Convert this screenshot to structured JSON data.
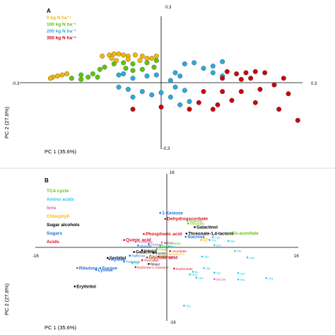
{
  "chart_data": [
    {
      "type": "scatter",
      "panel": "A",
      "xlabel": "PC 1 (35.6%)",
      "ylabel": "PC 2 (27.6%)",
      "xlim": [
        -0.3,
        0.3
      ],
      "ylim": [
        -0.3,
        0.3
      ],
      "tick_labels": {
        "x_min": "-0.3",
        "x_max": "0.3",
        "y_max": "0.3",
        "y_min": "-0.3"
      },
      "legend": "top-left",
      "series": [
        {
          "name": "0 kg N ha⁻¹",
          "color": "#f2b705",
          "points": [
            [
              -0.23,
              0.025
            ],
            [
              -0.22,
              0.03
            ],
            [
              -0.21,
              0.035
            ],
            [
              -0.235,
              0.02
            ],
            [
              -0.2,
              0.04
            ],
            [
              -0.125,
              0.12
            ],
            [
              -0.11,
              0.125
            ],
            [
              -0.1,
              0.13
            ],
            [
              -0.09,
              0.13
            ],
            [
              -0.08,
              0.125
            ],
            [
              -0.07,
              0.12
            ],
            [
              -0.055,
              0.125
            ],
            [
              -0.04,
              0.12
            ],
            [
              -0.03,
              0.11
            ],
            [
              -0.02,
              0.11
            ],
            [
              -0.01,
              0.12
            ],
            [
              -0.105,
              0.11
            ],
            [
              -0.07,
              0.105
            ],
            [
              -0.045,
              0.1
            ],
            [
              -0.095,
              0.1
            ]
          ]
        },
        {
          "name": "100 kg N ha⁻¹",
          "color": "#5cc40e",
          "points": [
            [
              -0.19,
              0.02
            ],
            [
              -0.17,
              0.015
            ],
            [
              -0.155,
              0.025
            ],
            [
              -0.145,
              0.04
            ],
            [
              -0.13,
              0.06
            ],
            [
              -0.12,
              0.07
            ],
            [
              -0.1,
              0.085
            ],
            [
              -0.08,
              0.09
            ],
            [
              -0.06,
              0.085
            ],
            [
              -0.03,
              0.09
            ],
            [
              -0.01,
              0.1
            ],
            [
              -0.06,
              0.055
            ],
            [
              -0.04,
              0.06
            ],
            [
              -0.015,
              0.07
            ],
            [
              -0.17,
              0.035
            ],
            [
              -0.075,
              0.065
            ],
            [
              -0.135,
              0.025
            ]
          ]
        },
        {
          "name": "200 kg N ha⁻¹",
          "color": "#2aaadf",
          "points": [
            [
              -0.09,
              0.035
            ],
            [
              -0.08,
              0.04
            ],
            [
              -0.06,
              0.02
            ],
            [
              -0.03,
              0.03
            ],
            [
              -0.01,
              0.035
            ],
            [
              0.03,
              0.045
            ],
            [
              0.05,
              0.085
            ],
            [
              0.07,
              0.09
            ],
            [
              0.09,
              0.065
            ],
            [
              0.11,
              0.045
            ],
            [
              0.13,
              0.03
            ],
            [
              0.04,
              0.03
            ],
            [
              0.11,
              0.075
            ],
            [
              0.13,
              0.095
            ],
            [
              -0.09,
              -0.02
            ],
            [
              -0.07,
              -0.03
            ],
            [
              -0.04,
              -0.04
            ],
            [
              -0.06,
              -0.065
            ],
            [
              -0.02,
              -0.055
            ],
            [
              0.0,
              -0.045
            ],
            [
              0.03,
              -0.02
            ],
            [
              0.05,
              -0.035
            ],
            [
              0.02,
              -0.065
            ],
            [
              0.04,
              -0.1
            ],
            [
              0.06,
              -0.085
            ],
            [
              0.02,
              0.01
            ]
          ]
        },
        {
          "name": "350 kg N ha⁻¹",
          "color": "#c8050e",
          "points": [
            [
              0.14,
              0.05
            ],
            [
              0.16,
              0.04
            ],
            [
              0.18,
              0.045
            ],
            [
              0.13,
              0.02
            ],
            [
              0.17,
              0.015
            ],
            [
              0.2,
              0.05
            ],
            [
              0.22,
              0.045
            ],
            [
              0.19,
              0.02
            ],
            [
              0.09,
              -0.04
            ],
            [
              0.13,
              -0.04
            ],
            [
              0.17,
              -0.04
            ],
            [
              0.21,
              -0.03
            ],
            [
              0.24,
              -0.01
            ],
            [
              0.26,
              0.02
            ],
            [
              0.15,
              -0.08
            ],
            [
              0.08,
              -0.09
            ],
            [
              0.12,
              -0.1
            ],
            [
              0.2,
              -0.09
            ],
            [
              0.27,
              -0.05
            ],
            [
              -0.06,
              -0.12
            ],
            [
              0.0,
              -0.11
            ],
            [
              0.06,
              -0.12
            ],
            [
              0.11,
              -0.12
            ],
            [
              0.25,
              -0.12
            ],
            [
              0.29,
              -0.17
            ]
          ]
        }
      ]
    },
    {
      "type": "scatter",
      "panel": "B",
      "xlabel": "PC 1 (35.6%)",
      "ylabel": "PC 2 (27.6%)",
      "xlim": [
        -16,
        16
      ],
      "ylim": [
        -16,
        16
      ],
      "tick_labels": {
        "x_min": "-16",
        "x_max": "16",
        "y_max": "16",
        "y_min": "-16"
      },
      "legend": "left",
      "legend_entries": [
        {
          "label": "TCA cycle",
          "color": "#5cc40e"
        },
        {
          "label": "Amino acids",
          "color": "#2ec4e6"
        },
        {
          "label": "Ions",
          "color": "#e056c2"
        },
        {
          "label": "Chlorphyll",
          "color": "#f2b705"
        },
        {
          "label": "Sugar alcohols",
          "color": "#000000"
        },
        {
          "label": "Sugars",
          "color": "#1f6fd1"
        },
        {
          "label": "Acids",
          "color": "#d8101e"
        }
      ],
      "loadings": [
        {
          "label": "1-Kestose",
          "x": -0.8,
          "y": 7.5,
          "group": "Sugars",
          "size": "medium"
        },
        {
          "label": "Dehydroascorbate",
          "x": -0.2,
          "y": 6.2,
          "group": "Acids",
          "size": "large"
        },
        {
          "label": "Malonate",
          "x": 2.5,
          "y": 5.8,
          "group": "TCA cycle",
          "size": "small"
        },
        {
          "label": "Shikimate",
          "x": 2.6,
          "y": 5.2,
          "group": "TCA cycle",
          "size": "small"
        },
        {
          "label": "Galactinol",
          "x": 3.4,
          "y": 4.4,
          "group": "Sugar alcohols",
          "size": "medium"
        },
        {
          "label": "Threonate-1,4-lactone",
          "x": 2.4,
          "y": 3.0,
          "group": "Sugar alcohols",
          "size": "medium"
        },
        {
          "label": "Cis-aconitate",
          "x": 7.6,
          "y": 3.1,
          "group": "TCA cycle",
          "size": "medium"
        },
        {
          "label": "Phosphoric acid",
          "x": -2.8,
          "y": 2.9,
          "group": "Acids",
          "size": "large"
        },
        {
          "label": "Sucrose",
          "x": 2.3,
          "y": 2.3,
          "group": "Sugars",
          "size": "medium"
        },
        {
          "label": "Asp",
          "x": 5.6,
          "y": 2.2,
          "group": "Amino acids",
          "size": "small"
        },
        {
          "label": "Glu",
          "x": 5.2,
          "y": 1.6,
          "group": "Amino acids",
          "size": "small"
        },
        {
          "label": "Ser",
          "x": 7.5,
          "y": 1.4,
          "group": "Amino acids",
          "size": "small"
        },
        {
          "label": "Quinic acid",
          "x": -5.2,
          "y": 1.6,
          "group": "Acids",
          "size": "large"
        },
        {
          "label": "Cl⁻",
          "x": 4.2,
          "y": 1.6,
          "group": "Chlorphyll",
          "size": "medium"
        },
        {
          "label": "Gly",
          "x": 5.8,
          "y": 0.5,
          "group": "Amino acids",
          "size": "small"
        },
        {
          "label": "Thr",
          "x": 8.3,
          "y": -0.8,
          "group": "Amino acids",
          "size": "small"
        },
        {
          "label": "Galactinol",
          "x": -4.0,
          "y": -1.0,
          "group": "Sugar alcohols",
          "size": "medium"
        },
        {
          "label": "Glycolic acid",
          "x": -2.4,
          "y": -2.2,
          "group": "Acids",
          "size": "large"
        },
        {
          "label": "Sorbitol",
          "x": -7.2,
          "y": -2.3,
          "group": "Sugar alcohols",
          "size": "medium"
        },
        {
          "label": "Xylose",
          "x": -7.0,
          "y": -2.6,
          "group": "Sugars",
          "size": "medium"
        },
        {
          "label": "Gln",
          "x": 4.3,
          "y": -2.0,
          "group": "Amino acids",
          "size": "small"
        },
        {
          "label": "Asn",
          "x": 9.8,
          "y": -2.2,
          "group": "Amino acids",
          "size": "small"
        },
        {
          "label": "Ribulose",
          "x": -10.9,
          "y": -4.5,
          "group": "Sugars",
          "size": "medium"
        },
        {
          "label": "Fucose",
          "x": -8.1,
          "y": -4.5,
          "group": "Sugars",
          "size": "medium"
        },
        {
          "label": "Lyxose",
          "x": -8.6,
          "y": -4.9,
          "group": "Sugars",
          "size": "medium"
        },
        {
          "label": "Erythronate",
          "x": 0.9,
          "y": -4.6,
          "group": "Acids",
          "size": "small"
        },
        {
          "label": "Val",
          "x": 4.5,
          "y": -4.5,
          "group": "Amino acids",
          "size": "small"
        },
        {
          "label": "Tyr",
          "x": 5.8,
          "y": -5.5,
          "group": "Amino acids",
          "size": "small"
        },
        {
          "label": "Ile",
          "x": 3.2,
          "y": -5.3,
          "group": "Amino acids",
          "size": "small"
        },
        {
          "label": "Phe",
          "x": 2.8,
          "y": -5.9,
          "group": "Amino acids",
          "size": "small"
        },
        {
          "label": "Lys",
          "x": 8.7,
          "y": -5.6,
          "group": "Amino acids",
          "size": "small"
        },
        {
          "label": "Leu",
          "x": 3.6,
          "y": -6.6,
          "group": "Amino acids",
          "size": "small"
        },
        {
          "label": "Nitrate",
          "x": 5.8,
          "y": -6.9,
          "group": "Ions",
          "size": "small"
        },
        {
          "label": "Arg",
          "x": 12.1,
          "y": -6.7,
          "group": "Amino acids",
          "size": "small"
        },
        {
          "label": "His",
          "x": 8.7,
          "y": -7.0,
          "group": "Amino acids",
          "size": "small"
        },
        {
          "label": "Erythritol",
          "x": -11.2,
          "y": -8.5,
          "group": "Sugar alcohols",
          "size": "medium"
        },
        {
          "label": "Trp",
          "x": 2.1,
          "y": -12.7,
          "group": "Amino acids",
          "size": "small"
        },
        {
          "label": "Glucose",
          "x": -3.5,
          "y": 0.4,
          "group": "Sugars",
          "size": "small"
        },
        {
          "label": "Fructose",
          "x": -2.2,
          "y": 0.7,
          "group": "Sugars",
          "size": "small"
        },
        {
          "label": "Malate",
          "x": -0.8,
          "y": 0.3,
          "group": "TCA cycle",
          "size": "small"
        },
        {
          "label": "Citrate",
          "x": -1.2,
          "y": -0.4,
          "group": "TCA cycle",
          "size": "small"
        },
        {
          "label": "Mannitol",
          "x": -3.0,
          "y": -0.6,
          "group": "Sugar alcohols",
          "size": "small"
        },
        {
          "label": "Inositol",
          "x": -1.6,
          "y": -1.2,
          "group": "Sugar alcohols",
          "size": "small"
        },
        {
          "label": "Chlorophyll a",
          "x": -0.4,
          "y": -1.4,
          "group": "Chlorphyll",
          "size": "small"
        },
        {
          "label": "Sulfate",
          "x": -0.6,
          "y": 1.1,
          "group": "Ions",
          "size": "small"
        },
        {
          "label": "Phosphate",
          "x": -3.8,
          "y": 1.2,
          "group": "Ions",
          "size": "small"
        },
        {
          "label": "Succinate",
          "x": -2.0,
          "y": -1.8,
          "group": "TCA cycle",
          "size": "small"
        },
        {
          "label": "Fumarate",
          "x": -0.2,
          "y": 0.9,
          "group": "TCA cycle",
          "size": "small"
        },
        {
          "label": "Raffinose",
          "x": -4.5,
          "y": -1.8,
          "group": "Sugars",
          "size": "small"
        },
        {
          "label": "Glycerate",
          "x": -1.0,
          "y": -2.0,
          "group": "Acids",
          "size": "small"
        },
        {
          "label": "Threonate",
          "x": -3.0,
          "y": -2.8,
          "group": "Acids",
          "size": "small"
        },
        {
          "label": "Ascorbate",
          "x": 0.4,
          "y": -0.8,
          "group": "Acids",
          "size": "small"
        },
        {
          "label": "Pro",
          "x": 0.2,
          "y": 0.2,
          "group": "Amino acids",
          "size": "small"
        },
        {
          "label": "Ala",
          "x": -4.2,
          "y": -3.4,
          "group": "Amino acids",
          "size": "small"
        },
        {
          "label": "Ribitol",
          "x": -2.2,
          "y": -3.6,
          "group": "Sugar alcohols",
          "size": "small"
        },
        {
          "label": "Erythrose-1,4-lactone",
          "x": -3.8,
          "y": -4.3,
          "group": "Acids",
          "size": "small"
        },
        {
          "label": "Trehalose",
          "x": -5.2,
          "y": -3.1,
          "group": "Sugars",
          "size": "small"
        }
      ]
    }
  ]
}
